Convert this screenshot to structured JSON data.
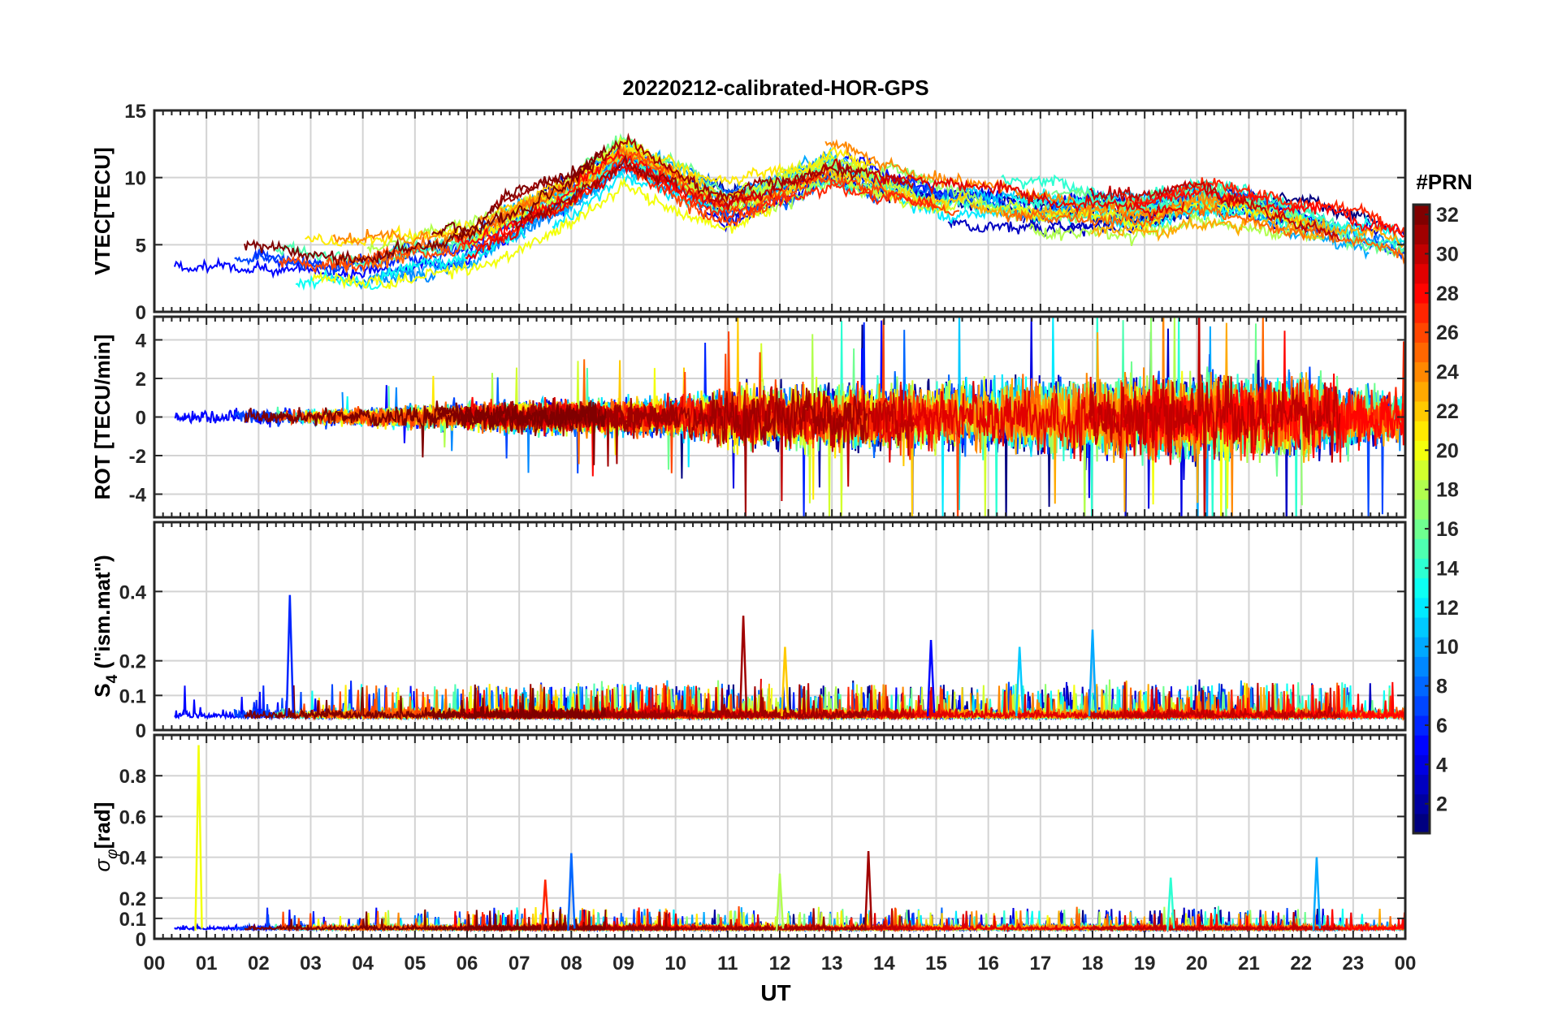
{
  "title": "20220212-calibrated-HOR-GPS",
  "xlabel": "UT",
  "x_tick_labels": [
    "00",
    "01",
    "02",
    "03",
    "04",
    "05",
    "06",
    "07",
    "08",
    "09",
    "10",
    "11",
    "12",
    "13",
    "14",
    "15",
    "16",
    "17",
    "18",
    "19",
    "20",
    "21",
    "22",
    "23",
    "00"
  ],
  "colorbar": {
    "label": "#PRN",
    "tick_labels": [
      "2",
      "4",
      "6",
      "8",
      "10",
      "12",
      "14",
      "16",
      "18",
      "20",
      "22",
      "24",
      "26",
      "28",
      "30",
      "32"
    ],
    "tick_values": [
      2,
      4,
      6,
      8,
      10,
      12,
      14,
      16,
      18,
      20,
      22,
      24,
      26,
      28,
      30,
      32
    ],
    "range": [
      1,
      32
    ],
    "colormap": "jet"
  },
  "chart_data": [
    {
      "id": "vtec",
      "type": "line",
      "ylabel": "VTEC[TECU]",
      "ylim": [
        0,
        15
      ],
      "y_tick_values": [
        0,
        5,
        10,
        15
      ],
      "y_tick_labels": [
        "0",
        "5",
        "10",
        "15"
      ],
      "xlim_hours": [
        0,
        24
      ],
      "description_of_series": "Vertical TEC per GPS PRN 1-32; ~3-5 TECU 00-05 UT, rising to 8-14 TECU 08-21 UT, ~5-8 TECU by 23 UT",
      "typical_profile": {
        "hours": [
          0,
          2,
          4,
          6,
          8,
          9,
          11,
          13,
          15,
          17,
          19,
          20,
          21,
          22,
          23,
          24
        ],
        "values": [
          3.5,
          4.2,
          3.3,
          4.8,
          8.5,
          11.5,
          7.5,
          10.5,
          8.5,
          8,
          7.5,
          8.5,
          8,
          7,
          6,
          5
        ]
      }
    },
    {
      "id": "rot",
      "type": "line",
      "ylabel": "ROT [TECU/min]",
      "ylim": [
        -5.2,
        5.2
      ],
      "y_tick_values": [
        -4,
        -2,
        0,
        2,
        4
      ],
      "y_tick_labels": [
        "-4",
        "-2",
        "0",
        "2",
        "4"
      ],
      "xlim_hours": [
        0,
        24
      ],
      "description_of_series": "Rate of TEC per PRN; within ±0.5 early, amplitude ±2-4 TECU/min after 11 UT with spikes to ±5",
      "amplitude_profile": {
        "hours": [
          0,
          4,
          7,
          10,
          11,
          14,
          18,
          20,
          22,
          24
        ],
        "values": [
          0.4,
          0.5,
          0.9,
          1.0,
          1.6,
          1.8,
          2.0,
          2.2,
          2.2,
          1.5
        ]
      }
    },
    {
      "id": "s4",
      "type": "line",
      "ylabel": "S4 (\"ism.mat\")",
      "ylabel_main": "S",
      "ylabel_sub": "4",
      "ylabel_rest": " (\"ism.mat\")",
      "ylim": [
        0,
        0.6
      ],
      "y_tick_values": [
        0,
        0.1,
        0.2,
        0.4
      ],
      "y_tick_labels": [
        "0",
        "0.1",
        "0.2",
        "0.4"
      ],
      "xlim_hours": [
        0,
        24
      ],
      "description_of_series": "Amplitude scintillation index per PRN; baseline 0.02-0.05 with bursts to 0.1-0.2 and peaks ~0.39 at 02.6 UT, ~0.33 at 11.3 UT, ~0.3 at 18 UT",
      "peaks": [
        {
          "hour": 2.6,
          "value": 0.39,
          "prn": 6
        },
        {
          "hour": 11.3,
          "value": 0.33,
          "prn": 31
        },
        {
          "hour": 18.0,
          "value": 0.29,
          "prn": 10
        },
        {
          "hour": 14.9,
          "value": 0.26,
          "prn": 5
        },
        {
          "hour": 16.6,
          "value": 0.24,
          "prn": 11
        },
        {
          "hour": 12.1,
          "value": 0.24,
          "prn": 22
        }
      ]
    },
    {
      "id": "sigma_phi",
      "type": "line",
      "ylabel": "σφ[rad]",
      "ylabel_main": "σ",
      "ylabel_sub": "φ",
      "ylabel_rest": "[rad]",
      "ylim": [
        0,
        1.0
      ],
      "y_tick_values": [
        0,
        0.1,
        0.2,
        0.4,
        0.6,
        0.8
      ],
      "y_tick_labels": [
        "0",
        "0.1",
        "0.2",
        "0.4",
        "0.6",
        "0.8"
      ],
      "xlim_hours": [
        0,
        24
      ],
      "description_of_series": "Phase scintillation index per PRN; baseline 0.03-0.06 with peaks ~0.95 at 00.9 UT, ~0.43 at 13.7 UT, ~0.42 at 08.0 UT, ~0.4 at 22.3 UT",
      "peaks": [
        {
          "hour": 0.85,
          "value": 0.95,
          "prn": 20
        },
        {
          "hour": 13.7,
          "value": 0.43,
          "prn": 31
        },
        {
          "hour": 8.0,
          "value": 0.42,
          "prn": 8
        },
        {
          "hour": 22.3,
          "value": 0.4,
          "prn": 10
        },
        {
          "hour": 19.5,
          "value": 0.3,
          "prn": 14
        },
        {
          "hour": 12.0,
          "value": 0.32,
          "prn": 18
        },
        {
          "hour": 7.5,
          "value": 0.29,
          "prn": 27
        }
      ]
    }
  ]
}
